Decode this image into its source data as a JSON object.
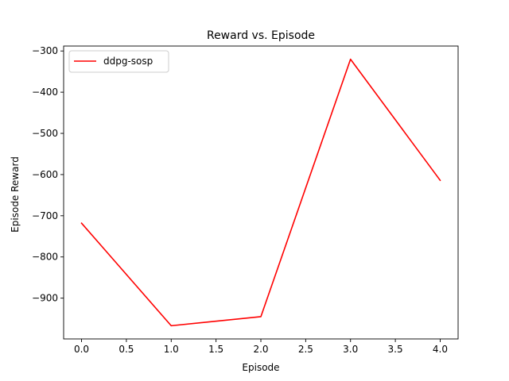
{
  "chart_data": {
    "type": "line",
    "title": "Reward vs. Episode",
    "xlabel": "Episode",
    "ylabel": "Episode Reward",
    "x": [
      0,
      1,
      2,
      3,
      4
    ],
    "series": [
      {
        "name": "ddpg-sosp",
        "color": "#ff0000",
        "values": [
          -718,
          -967,
          -945,
          -320,
          -614
        ]
      }
    ],
    "xlim": [
      -0.2,
      4.2
    ],
    "ylim": [
      -999,
      -288
    ],
    "xticks": [
      0.0,
      0.5,
      1.0,
      1.5,
      2.0,
      2.5,
      3.0,
      3.5,
      4.0
    ],
    "xtick_labels": [
      "0.0",
      "0.5",
      "1.0",
      "1.5",
      "2.0",
      "2.5",
      "3.0",
      "3.5",
      "4.0"
    ],
    "yticks": [
      -300,
      -400,
      -500,
      -600,
      -700,
      -800,
      -900
    ],
    "ytick_labels": [
      "−300",
      "−400",
      "−500",
      "−600",
      "−700",
      "−800",
      "−900"
    ],
    "grid": false,
    "legend_position": "top-left"
  }
}
